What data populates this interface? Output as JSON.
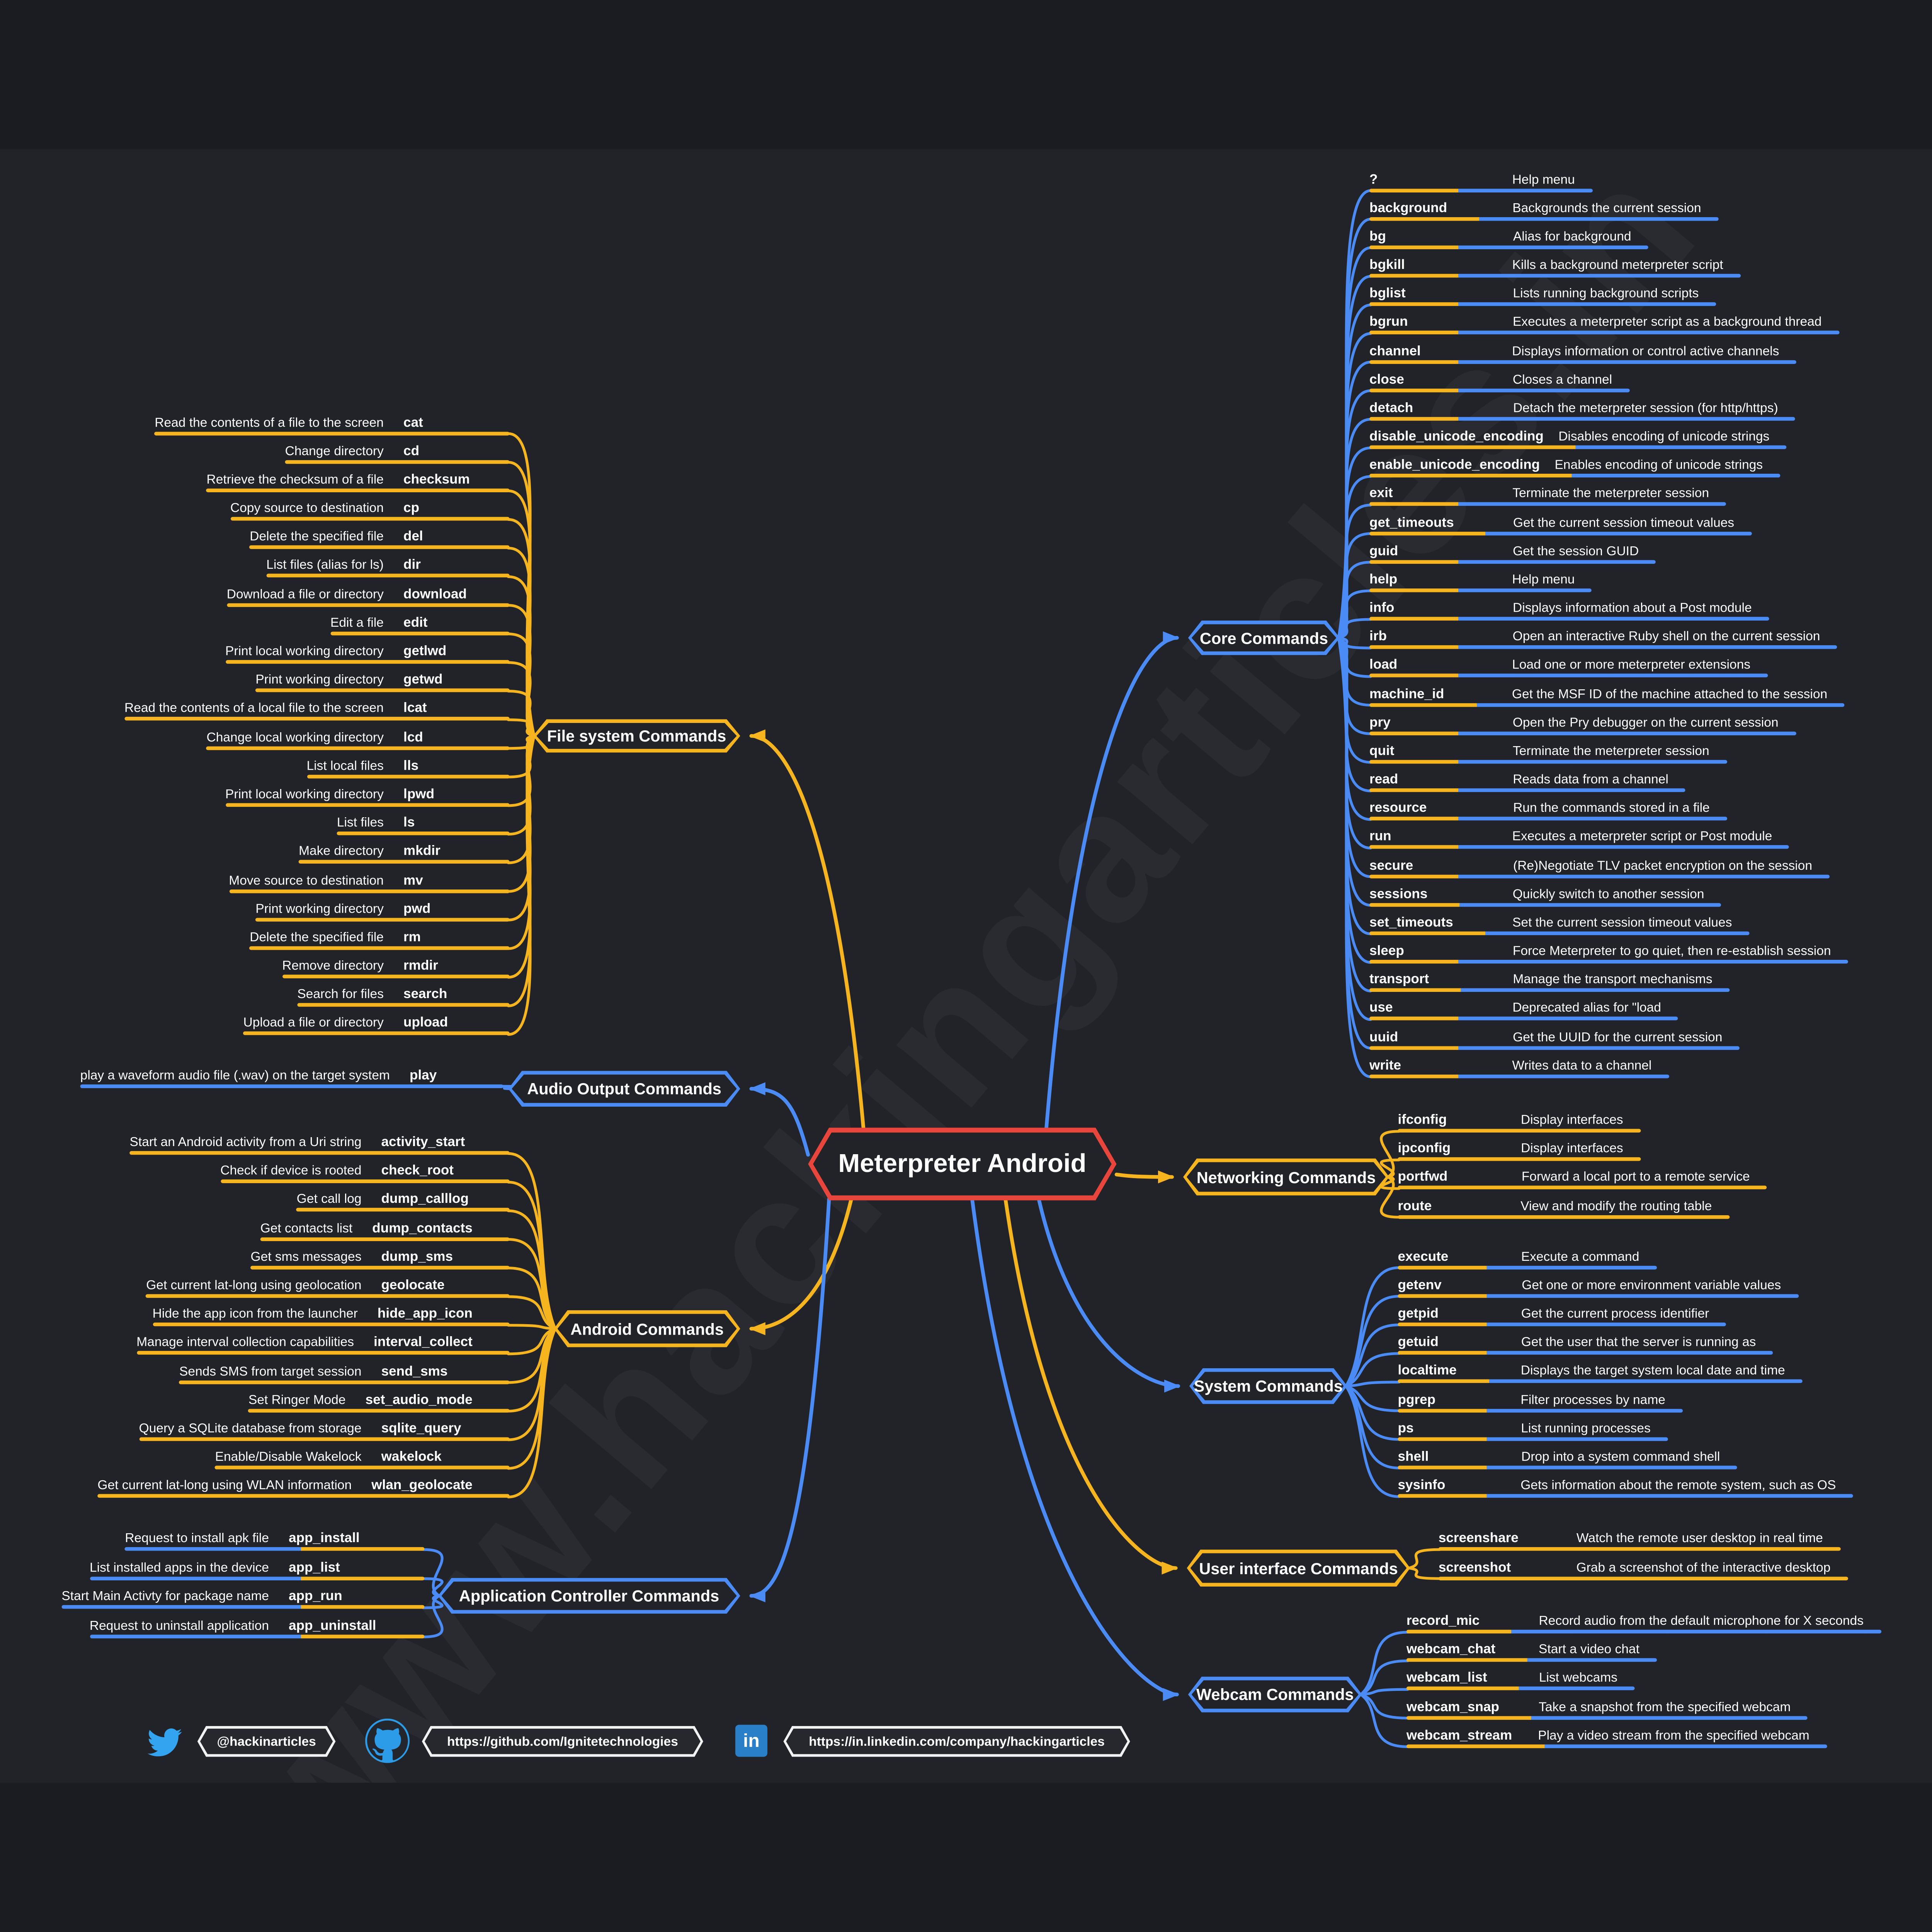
{
  "title": "Meterpreter Android",
  "watermark": "www.hackingarticles.in",
  "colors": {
    "background": "#212329",
    "blue": "#4b8bf5",
    "yellow": "#f6b51f",
    "red": "#e8463c",
    "twitter": "#33a4f0",
    "github": "#2d9ce8",
    "linkedin": "#2a7fc9"
  },
  "branches": [
    {
      "id": "filesystem",
      "label": "File system Commands",
      "color": "yellow",
      "items": [
        {
          "desc": "Read the contents of a file to the screen",
          "cmd": "cat"
        },
        {
          "desc": "Change directory",
          "cmd": "cd"
        },
        {
          "desc": "Retrieve the checksum of a file",
          "cmd": "checksum"
        },
        {
          "desc": "Copy source to destination",
          "cmd": "cp"
        },
        {
          "desc": "Delete the specified file",
          "cmd": "del"
        },
        {
          "desc": "List files (alias for ls)",
          "cmd": "dir"
        },
        {
          "desc": "Download a file or directory",
          "cmd": "download"
        },
        {
          "desc": "Edit a file",
          "cmd": "edit"
        },
        {
          "desc": "Print local working directory",
          "cmd": "getlwd"
        },
        {
          "desc": "Print working directory",
          "cmd": "getwd"
        },
        {
          "desc": "Read the contents of a local file to the screen",
          "cmd": "lcat"
        },
        {
          "desc": "Change local working directory",
          "cmd": "lcd"
        },
        {
          "desc": "List local files",
          "cmd": "lls"
        },
        {
          "desc": "Print local working directory",
          "cmd": "lpwd"
        },
        {
          "desc": "List files",
          "cmd": "ls"
        },
        {
          "desc": "Make directory",
          "cmd": "mkdir"
        },
        {
          "desc": "Move source to destination",
          "cmd": "mv"
        },
        {
          "desc": "Print working directory",
          "cmd": "pwd"
        },
        {
          "desc": "Delete the specified file",
          "cmd": "rm"
        },
        {
          "desc": "Remove directory",
          "cmd": "rmdir"
        },
        {
          "desc": "Search for files",
          "cmd": "search"
        },
        {
          "desc": "Upload a file or directory",
          "cmd": "upload"
        }
      ]
    },
    {
      "id": "audio",
      "label": "Audio Output Commands",
      "color": "blue",
      "items": [
        {
          "desc": "play a waveform audio file (.wav) on the target system",
          "cmd": "play"
        }
      ]
    },
    {
      "id": "android",
      "label": "Android Commands",
      "color": "yellow",
      "items": [
        {
          "desc": "Start an Android activity from a Uri string",
          "cmd": "activity_start"
        },
        {
          "desc": "Check if device is rooted",
          "cmd": "check_root"
        },
        {
          "desc": "Get call log",
          "cmd": "dump_calllog"
        },
        {
          "desc": "Get contacts list",
          "cmd": "dump_contacts"
        },
        {
          "desc": "Get sms messages",
          "cmd": "dump_sms"
        },
        {
          "desc": "Get current lat-long using geolocation",
          "cmd": "geolocate"
        },
        {
          "desc": "Hide the app icon from the launcher",
          "cmd": "hide_app_icon"
        },
        {
          "desc": "Manage interval collection capabilities",
          "cmd": "interval_collect"
        },
        {
          "desc": "Sends SMS from target session",
          "cmd": "send_sms"
        },
        {
          "desc": "Set Ringer Mode",
          "cmd": "set_audio_mode"
        },
        {
          "desc": "Query a SQLite database from storage",
          "cmd": "sqlite_query"
        },
        {
          "desc": "Enable/Disable Wakelock",
          "cmd": "wakelock"
        },
        {
          "desc": "Get current lat-long using WLAN information",
          "cmd": "wlan_geolocate"
        }
      ]
    },
    {
      "id": "app",
      "label": "Application Controller Commands",
      "color": "blue",
      "items": [
        {
          "desc": "Request to install apk file",
          "cmd": "app_install"
        },
        {
          "desc": "List installed apps in the device",
          "cmd": "app_list"
        },
        {
          "desc": "Start Main Activty for package name",
          "cmd": "app_run"
        },
        {
          "desc": "Request to uninstall application",
          "cmd": "app_uninstall"
        }
      ]
    },
    {
      "id": "core",
      "label": "Core Commands",
      "color": "blue",
      "items": [
        {
          "cmd": "?",
          "desc": "Help menu"
        },
        {
          "cmd": "background",
          "desc": "Backgrounds the current session"
        },
        {
          "cmd": "bg",
          "desc": "Alias for background"
        },
        {
          "cmd": "bgkill",
          "desc": "Kills a background meterpreter script"
        },
        {
          "cmd": "bglist",
          "desc": "Lists running background scripts"
        },
        {
          "cmd": "bgrun",
          "desc": "Executes a meterpreter script as a background thread"
        },
        {
          "cmd": "channel",
          "desc": "Displays information or control active channels"
        },
        {
          "cmd": "close",
          "desc": "Closes a channel"
        },
        {
          "cmd": "detach",
          "desc": "Detach the meterpreter session (for http/https)"
        },
        {
          "cmd": "disable_unicode_encoding",
          "desc": "Disables encoding of unicode strings"
        },
        {
          "cmd": "enable_unicode_encoding",
          "desc": "Enables encoding of unicode strings"
        },
        {
          "cmd": "exit",
          "desc": "Terminate the meterpreter session"
        },
        {
          "cmd": "get_timeouts",
          "desc": "Get the current session timeout values"
        },
        {
          "cmd": "guid",
          "desc": "Get the session GUID"
        },
        {
          "cmd": "help",
          "desc": "Help menu"
        },
        {
          "cmd": "info",
          "desc": "Displays information about a Post module"
        },
        {
          "cmd": "irb",
          "desc": "Open an interactive Ruby shell on the current session"
        },
        {
          "cmd": "load",
          "desc": "Load one or more meterpreter extensions"
        },
        {
          "cmd": "machine_id",
          "desc": "Get the MSF ID of the machine attached to the session"
        },
        {
          "cmd": "pry",
          "desc": "Open the Pry debugger on the current session"
        },
        {
          "cmd": "quit",
          "desc": "Terminate the meterpreter session"
        },
        {
          "cmd": "read",
          "desc": "Reads data from a channel"
        },
        {
          "cmd": "resource",
          "desc": "Run the commands stored in a file"
        },
        {
          "cmd": "run",
          "desc": "Executes a meterpreter script or Post module"
        },
        {
          "cmd": "secure",
          "desc": "(Re)Negotiate TLV packet encryption on the session"
        },
        {
          "cmd": "sessions",
          "desc": "Quickly switch to another session"
        },
        {
          "cmd": "set_timeouts",
          "desc": "Set the current session timeout values"
        },
        {
          "cmd": "sleep",
          "desc": "Force Meterpreter to go quiet, then re-establish session"
        },
        {
          "cmd": "transport",
          "desc": "Manage the transport mechanisms"
        },
        {
          "cmd": "use",
          "desc": "Deprecated alias for \"load"
        },
        {
          "cmd": "uuid",
          "desc": "Get the UUID for the current session"
        },
        {
          "cmd": "write",
          "desc": "Writes data to a channel"
        }
      ]
    },
    {
      "id": "networking",
      "label": "Networking Commands",
      "color": "yellow",
      "items": [
        {
          "cmd": "ifconfig",
          "desc": "Display interfaces"
        },
        {
          "cmd": "ipconfig",
          "desc": "Display interfaces"
        },
        {
          "cmd": "portfwd",
          "desc": "Forward a local port to a remote service"
        },
        {
          "cmd": "route",
          "desc": "View and modify the routing table"
        }
      ]
    },
    {
      "id": "system",
      "label": "System Commands",
      "color": "blue",
      "items": [
        {
          "cmd": "execute",
          "desc": "Execute a command"
        },
        {
          "cmd": "getenv",
          "desc": "Get one or more environment variable values"
        },
        {
          "cmd": "getpid",
          "desc": "Get the current process identifier"
        },
        {
          "cmd": "getuid",
          "desc": "Get the user that the server is running as"
        },
        {
          "cmd": "localtime",
          "desc": "Displays the target system local date and time"
        },
        {
          "cmd": "pgrep",
          "desc": "Filter processes by name"
        },
        {
          "cmd": "ps",
          "desc": "List running processes"
        },
        {
          "cmd": "shell",
          "desc": "Drop into a system command shell"
        },
        {
          "cmd": "sysinfo",
          "desc": "Gets information about the remote system, such as OS"
        }
      ]
    },
    {
      "id": "ui",
      "label": "User interface Commands",
      "color": "yellow",
      "items": [
        {
          "cmd": "screenshare",
          "desc": "Watch the remote user desktop in real time"
        },
        {
          "cmd": "screenshot",
          "desc": "Grab a screenshot of the interactive desktop"
        }
      ]
    },
    {
      "id": "webcam",
      "label": "Webcam Commands",
      "color": "blue",
      "items": [
        {
          "cmd": "record_mic",
          "desc": "Record audio from the default microphone for X seconds"
        },
        {
          "cmd": "webcam_chat",
          "desc": "Start a video chat"
        },
        {
          "cmd": "webcam_list",
          "desc": "List webcams"
        },
        {
          "cmd": "webcam_snap",
          "desc": "Take a snapshot from the specified webcam"
        },
        {
          "cmd": "webcam_stream",
          "desc": "Play a video stream from the specified webcam"
        }
      ]
    }
  ],
  "footer": {
    "twitter": "@hackinarticles",
    "github": "https://github.com/Ignitetechnologies",
    "linkedin": "https://in.linkedin.com/company/hackingarticles"
  }
}
